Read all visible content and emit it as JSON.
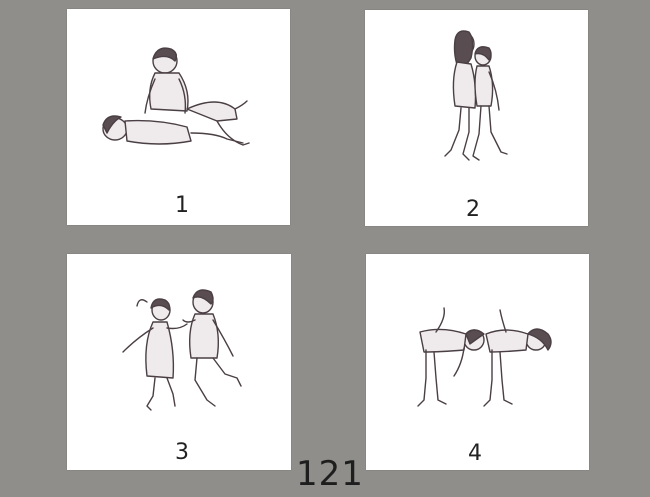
{
  "cards": [
    {
      "number": "1",
      "illustration": "children-wrestling"
    },
    {
      "number": "2",
      "illustration": "children-walking-hugging"
    },
    {
      "number": "3",
      "illustration": "children-dancing"
    },
    {
      "number": "4",
      "illustration": "children-bending-stretching"
    }
  ],
  "page": {
    "number": "121"
  },
  "colors": {
    "background": "#8f8e8a",
    "card": "#ffffff",
    "ink": "#4a3f44"
  }
}
